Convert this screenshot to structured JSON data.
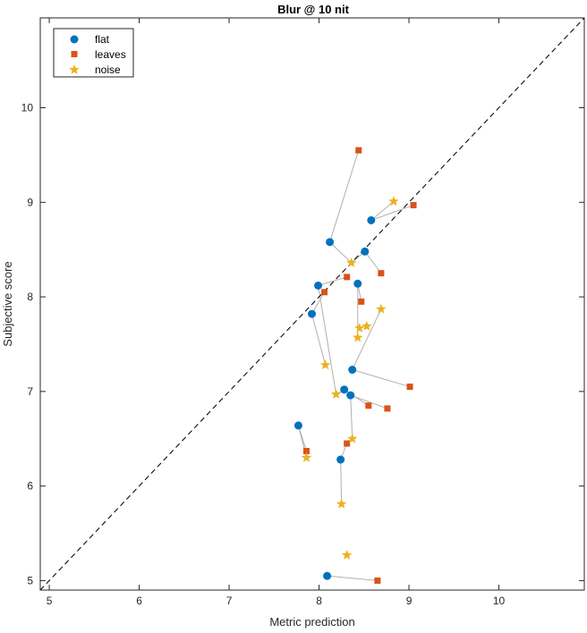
{
  "chart_data": {
    "type": "scatter",
    "title": "Blur @ 10 nit",
    "xlabel": "Metric prediction",
    "ylabel": "Subjective score",
    "xlim": [
      4.9,
      10.95
    ],
    "ylim": [
      4.9,
      10.95
    ],
    "xticks": [
      5,
      6,
      7,
      8,
      9,
      10
    ],
    "yticks": [
      5,
      6,
      7,
      8,
      9,
      10
    ],
    "grid": false,
    "legend_position": "top-left",
    "reference_line": "identity (dashed)",
    "colors": {
      "flat": "#0072BD",
      "leaves": "#D95319",
      "noise": "#EDB120",
      "connector": "#b0b0b0",
      "reference": "#000000"
    },
    "series": [
      {
        "name": "flat",
        "marker": "circle",
        "x": [
          8.09,
          8.24,
          7.77,
          8.28,
          8.35,
          8.37,
          7.92,
          7.99,
          8.43,
          8.51,
          8.12,
          8.58
        ],
        "y": [
          5.05,
          6.28,
          6.64,
          7.02,
          6.96,
          7.23,
          7.82,
          8.12,
          8.14,
          8.48,
          8.58,
          8.81
        ]
      },
      {
        "name": "leaves",
        "marker": "square",
        "x": [
          8.65,
          8.31,
          7.86,
          8.55,
          8.76,
          9.01,
          8.47,
          8.06,
          8.31,
          8.69,
          9.05,
          8.44
        ],
        "y": [
          5.0,
          6.45,
          6.37,
          6.85,
          6.82,
          7.05,
          7.95,
          8.05,
          8.21,
          8.25,
          8.97,
          9.55
        ]
      },
      {
        "name": "noise",
        "marker": "star",
        "x": [
          8.31,
          8.25,
          7.86,
          8.37,
          8.19,
          8.07,
          8.43,
          8.45,
          8.53,
          8.69,
          8.36,
          8.83
        ],
        "y": [
          5.27,
          5.81,
          6.3,
          6.5,
          6.97,
          7.28,
          7.57,
          7.67,
          7.69,
          7.87,
          8.36,
          9.01
        ]
      }
    ],
    "connections": [
      [
        0,
        0,
        0,
        0
      ],
      [
        0,
        0,
        1,
        0
      ],
      [
        0,
        1,
        1,
        1
      ],
      [
        0,
        1,
        2,
        1
      ],
      [
        0,
        2,
        1,
        2
      ],
      [
        0,
        2,
        2,
        2
      ],
      [
        0,
        3,
        1,
        3
      ],
      [
        0,
        3,
        2,
        4
      ],
      [
        0,
        4,
        1,
        4
      ],
      [
        0,
        4,
        2,
        3
      ],
      [
        0,
        5,
        1,
        5
      ],
      [
        0,
        5,
        2,
        9
      ],
      [
        0,
        6,
        1,
        7
      ],
      [
        0,
        6,
        2,
        5
      ],
      [
        0,
        7,
        1,
        8
      ],
      [
        0,
        7,
        2,
        4
      ],
      [
        0,
        8,
        1,
        6
      ],
      [
        0,
        8,
        2,
        6
      ],
      [
        0,
        9,
        1,
        9
      ],
      [
        0,
        9,
        2,
        10
      ],
      [
        0,
        10,
        1,
        11
      ],
      [
        0,
        10,
        2,
        10
      ],
      [
        0,
        11,
        1,
        10
      ],
      [
        0,
        11,
        2,
        11
      ]
    ]
  }
}
